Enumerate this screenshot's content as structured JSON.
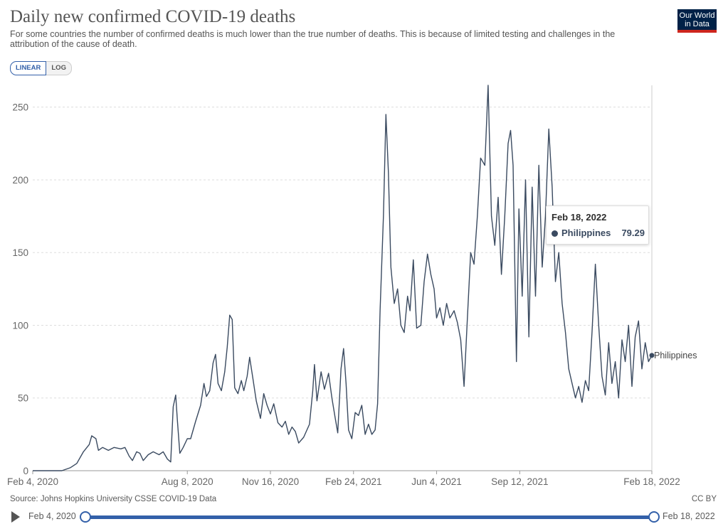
{
  "header": {
    "title": "Daily new confirmed COVID-19 deaths",
    "subtitle": "For some countries the number of confirmed deaths is much lower than the true number of deaths. This is because of limited testing and challenges in the attribution of the cause of death.",
    "logo_line1": "Our World",
    "logo_line2": "in Data"
  },
  "controls": {
    "linear_label": "LINEAR",
    "log_label": "LOG",
    "selected_scale": "linear"
  },
  "tooltip": {
    "date": "Feb 18, 2022",
    "series": "Philippines",
    "value": "79.29"
  },
  "footer": {
    "source": "Source: Johns Hopkins University CSSE COVID-19 Data",
    "license": "CC BY"
  },
  "timeline": {
    "start_label": "Feb 4, 2020",
    "end_label": "Feb 18, 2022"
  },
  "colors": {
    "line": "#3a4a60",
    "accent": "#3360a9",
    "logo_bg": "#002147",
    "logo_bar": "#ce261e"
  },
  "chart_data": {
    "type": "line",
    "title": "Daily new confirmed COVID-19 deaths",
    "xlabel": "",
    "ylabel": "",
    "ylim": [
      0,
      265
    ],
    "yticks": [
      0,
      50,
      100,
      150,
      200,
      250
    ],
    "xticks": [
      "Feb 4, 2020",
      "Aug 8, 2020",
      "Nov 16, 2020",
      "Feb 24, 2021",
      "Jun 4, 2021",
      "Sep 12, 2021",
      "Feb 18, 2022"
    ],
    "grid": "horizontal dashed",
    "series": [
      {
        "name": "Philippines",
        "end_label": "Philippines",
        "points": [
          [
            "2020-02-04",
            0
          ],
          [
            "2020-02-25",
            0
          ],
          [
            "2020-03-10",
            0
          ],
          [
            "2020-03-20",
            2
          ],
          [
            "2020-03-28",
            5
          ],
          [
            "2020-04-05",
            13
          ],
          [
            "2020-04-12",
            18
          ],
          [
            "2020-04-15",
            24
          ],
          [
            "2020-04-20",
            22
          ],
          [
            "2020-04-23",
            14
          ],
          [
            "2020-04-28",
            16
          ],
          [
            "2020-05-05",
            14
          ],
          [
            "2020-05-12",
            16
          ],
          [
            "2020-05-20",
            15
          ],
          [
            "2020-05-25",
            16
          ],
          [
            "2020-05-30",
            10
          ],
          [
            "2020-06-03",
            7
          ],
          [
            "2020-06-08",
            13
          ],
          [
            "2020-06-12",
            12
          ],
          [
            "2020-06-16",
            7
          ],
          [
            "2020-06-22",
            11
          ],
          [
            "2020-06-28",
            13
          ],
          [
            "2020-07-05",
            11
          ],
          [
            "2020-07-10",
            13
          ],
          [
            "2020-07-15",
            8
          ],
          [
            "2020-07-19",
            6
          ],
          [
            "2020-07-22",
            44
          ],
          [
            "2020-07-25",
            52
          ],
          [
            "2020-07-27",
            35
          ],
          [
            "2020-07-30",
            12
          ],
          [
            "2020-08-03",
            16
          ],
          [
            "2020-08-08",
            22
          ],
          [
            "2020-08-12",
            22
          ],
          [
            "2020-08-18",
            34
          ],
          [
            "2020-08-24",
            45
          ],
          [
            "2020-08-28",
            60
          ],
          [
            "2020-08-31",
            51
          ],
          [
            "2020-09-04",
            55
          ],
          [
            "2020-09-08",
            74
          ],
          [
            "2020-09-11",
            80
          ],
          [
            "2020-09-14",
            60
          ],
          [
            "2020-09-18",
            55
          ],
          [
            "2020-09-22",
            68
          ],
          [
            "2020-09-25",
            85
          ],
          [
            "2020-09-28",
            107
          ],
          [
            "2020-10-01",
            104
          ],
          [
            "2020-10-04",
            57
          ],
          [
            "2020-10-08",
            53
          ],
          [
            "2020-10-12",
            62
          ],
          [
            "2020-10-15",
            55
          ],
          [
            "2020-10-19",
            65
          ],
          [
            "2020-10-22",
            78
          ],
          [
            "2020-10-26",
            63
          ],
          [
            "2020-10-30",
            48
          ],
          [
            "2020-11-04",
            36
          ],
          [
            "2020-11-08",
            53
          ],
          [
            "2020-11-12",
            45
          ],
          [
            "2020-11-16",
            39
          ],
          [
            "2020-11-20",
            46
          ],
          [
            "2020-11-25",
            33
          ],
          [
            "2020-11-30",
            30
          ],
          [
            "2020-12-04",
            34
          ],
          [
            "2020-12-08",
            25
          ],
          [
            "2020-12-12",
            30
          ],
          [
            "2020-12-16",
            27
          ],
          [
            "2020-12-20",
            19
          ],
          [
            "2020-12-26",
            23
          ],
          [
            "2021-01-02",
            32
          ],
          [
            "2021-01-06",
            55
          ],
          [
            "2021-01-08",
            73
          ],
          [
            "2021-01-11",
            48
          ],
          [
            "2021-01-16",
            68
          ],
          [
            "2021-01-20",
            56
          ],
          [
            "2021-01-25",
            67
          ],
          [
            "2021-01-29",
            50
          ],
          [
            "2021-02-02",
            36
          ],
          [
            "2021-02-05",
            26
          ],
          [
            "2021-02-09",
            70
          ],
          [
            "2021-02-12",
            84
          ],
          [
            "2021-02-15",
            60
          ],
          [
            "2021-02-18",
            28
          ],
          [
            "2021-02-22",
            22
          ],
          [
            "2021-02-26",
            40
          ],
          [
            "2021-03-02",
            38
          ],
          [
            "2021-03-06",
            45
          ],
          [
            "2021-03-10",
            25
          ],
          [
            "2021-03-14",
            32
          ],
          [
            "2021-03-18",
            25
          ],
          [
            "2021-03-22",
            28
          ],
          [
            "2021-03-25",
            46
          ],
          [
            "2021-03-28",
            110
          ],
          [
            "2021-04-01",
            175
          ],
          [
            "2021-04-04",
            245
          ],
          [
            "2021-04-07",
            205
          ],
          [
            "2021-04-10",
            140
          ],
          [
            "2021-04-14",
            115
          ],
          [
            "2021-04-18",
            125
          ],
          [
            "2021-04-22",
            100
          ],
          [
            "2021-04-26",
            95
          ],
          [
            "2021-04-30",
            120
          ],
          [
            "2021-05-03",
            110
          ],
          [
            "2021-05-07",
            145
          ],
          [
            "2021-05-11",
            98
          ],
          [
            "2021-05-16",
            100
          ],
          [
            "2021-05-20",
            130
          ],
          [
            "2021-05-24",
            149
          ],
          [
            "2021-05-28",
            135
          ],
          [
            "2021-06-01",
            125
          ],
          [
            "2021-06-04",
            105
          ],
          [
            "2021-06-08",
            112
          ],
          [
            "2021-06-12",
            100
          ],
          [
            "2021-06-16",
            115
          ],
          [
            "2021-06-20",
            105
          ],
          [
            "2021-06-25",
            110
          ],
          [
            "2021-06-29",
            102
          ],
          [
            "2021-07-03",
            90
          ],
          [
            "2021-07-07",
            58
          ],
          [
            "2021-07-11",
            105
          ],
          [
            "2021-07-15",
            150
          ],
          [
            "2021-07-19",
            142
          ],
          [
            "2021-07-23",
            175
          ],
          [
            "2021-07-27",
            215
          ],
          [
            "2021-08-01",
            210
          ],
          [
            "2021-08-05",
            265
          ],
          [
            "2021-08-09",
            175
          ],
          [
            "2021-08-13",
            155
          ],
          [
            "2021-08-17",
            188
          ],
          [
            "2021-08-21",
            135
          ],
          [
            "2021-08-25",
            175
          ],
          [
            "2021-08-29",
            225
          ],
          [
            "2021-09-01",
            234
          ],
          [
            "2021-09-04",
            210
          ],
          [
            "2021-09-08",
            75
          ],
          [
            "2021-09-11",
            180
          ],
          [
            "2021-09-15",
            120
          ],
          [
            "2021-09-19",
            200
          ],
          [
            "2021-09-23",
            92
          ],
          [
            "2021-09-27",
            195
          ],
          [
            "2021-10-01",
            120
          ],
          [
            "2021-10-05",
            210
          ],
          [
            "2021-10-09",
            140
          ],
          [
            "2021-10-13",
            175
          ],
          [
            "2021-10-17",
            235
          ],
          [
            "2021-10-21",
            195
          ],
          [
            "2021-10-25",
            130
          ],
          [
            "2021-10-29",
            150
          ],
          [
            "2021-11-02",
            115
          ],
          [
            "2021-11-06",
            95
          ],
          [
            "2021-11-10",
            70
          ],
          [
            "2021-11-14",
            60
          ],
          [
            "2021-11-18",
            50
          ],
          [
            "2021-11-22",
            58
          ],
          [
            "2021-11-26",
            47
          ],
          [
            "2021-11-30",
            62
          ],
          [
            "2021-12-04",
            55
          ],
          [
            "2021-12-08",
            95
          ],
          [
            "2021-12-12",
            142
          ],
          [
            "2021-12-16",
            100
          ],
          [
            "2021-12-20",
            65
          ],
          [
            "2021-12-24",
            52
          ],
          [
            "2021-12-28",
            88
          ],
          [
            "2022-01-01",
            60
          ],
          [
            "2022-01-05",
            75
          ],
          [
            "2022-01-09",
            50
          ],
          [
            "2022-01-13",
            90
          ],
          [
            "2022-01-17",
            75
          ],
          [
            "2022-01-21",
            100
          ],
          [
            "2022-01-25",
            58
          ],
          [
            "2022-01-29",
            92
          ],
          [
            "2022-02-02",
            103
          ],
          [
            "2022-02-06",
            70
          ],
          [
            "2022-02-10",
            88
          ],
          [
            "2022-02-14",
            75
          ],
          [
            "2022-02-18",
            79.29
          ]
        ]
      }
    ]
  }
}
